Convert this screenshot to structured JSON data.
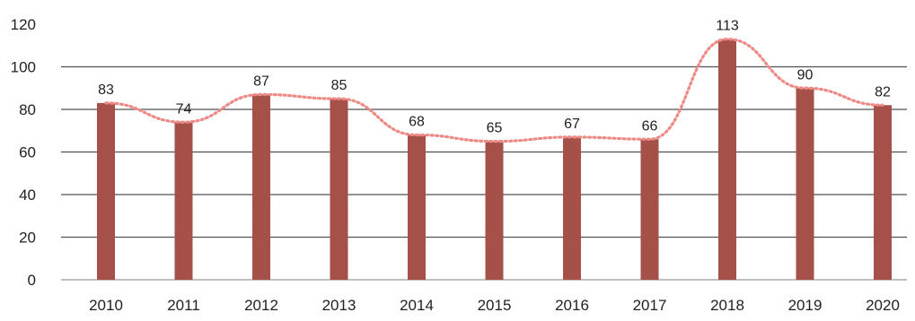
{
  "chart_data": {
    "type": "bar",
    "categories": [
      "2010",
      "2011",
      "2012",
      "2013",
      "2014",
      "2015",
      "2016",
      "2017",
      "2018",
      "2019",
      "2020"
    ],
    "values": [
      83,
      74,
      87,
      85,
      68,
      65,
      67,
      66,
      113,
      90,
      82
    ],
    "trend": {
      "type": "line",
      "style": "dotted",
      "values": [
        83,
        74,
        87,
        85,
        68,
        65,
        67,
        66,
        113,
        90,
        82
      ]
    },
    "title": "",
    "xlabel": "",
    "ylabel": "",
    "ylim": [
      0,
      120
    ],
    "yticks": [
      "0",
      "20",
      "40",
      "60",
      "80",
      "100",
      "120"
    ],
    "grid": true,
    "legend": "none",
    "colors": {
      "bar": "#a5514a",
      "trend": "#ee8a86",
      "grid": "#333333",
      "text": "#222222"
    }
  }
}
